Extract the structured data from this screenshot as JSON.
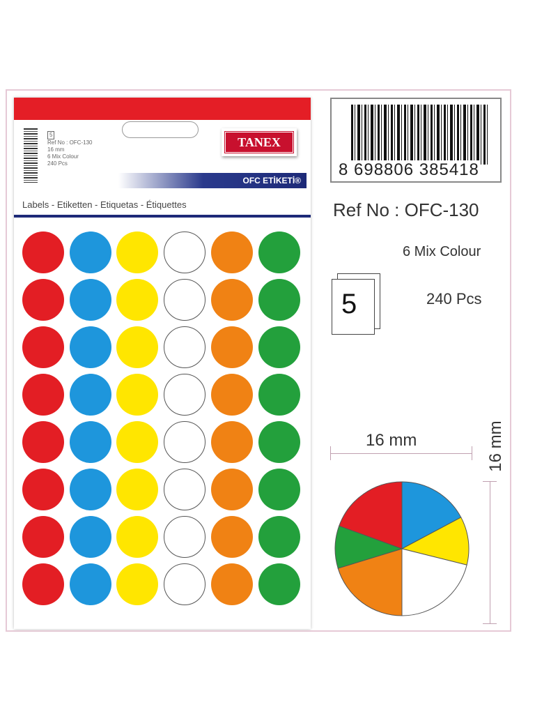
{
  "brand": "TANEX",
  "product_line": "OFC ETİKETİ®",
  "languages": "Labels - Etiketten - Etiquetas - Étiquettes",
  "mini_label": {
    "count": "5",
    "ref": "Ref No : OFC-130",
    "size": "16 mm",
    "mix": "6 Mix Colour",
    "pcs": "240 Pcs"
  },
  "barcode": "8 698806 385418",
  "ref": "Ref No : OFC-130",
  "mix": "6 Mix Colour",
  "pack_count": "5",
  "pcs": "240 Pcs",
  "width_dim": "16 mm",
  "height_dim": "16 mm",
  "colors": {
    "red": "#e31e24",
    "blue": "#1e96dc",
    "yellow": "#ffe600",
    "white": "#ffffff",
    "orange": "#f08214",
    "green": "#23a03c"
  },
  "grid": {
    "columns": [
      "red",
      "blue",
      "yellow",
      "white",
      "orange",
      "green"
    ],
    "rows": 8
  },
  "pie": [
    {
      "color": "blue",
      "from": 0,
      "to": 62
    },
    {
      "color": "yellow",
      "from": 62,
      "to": 104
    },
    {
      "color": "white",
      "from": 104,
      "to": 180
    },
    {
      "color": "orange",
      "from": 180,
      "to": 253
    },
    {
      "color": "green",
      "from": 253,
      "to": 290
    },
    {
      "color": "red",
      "from": 290,
      "to": 360
    }
  ]
}
